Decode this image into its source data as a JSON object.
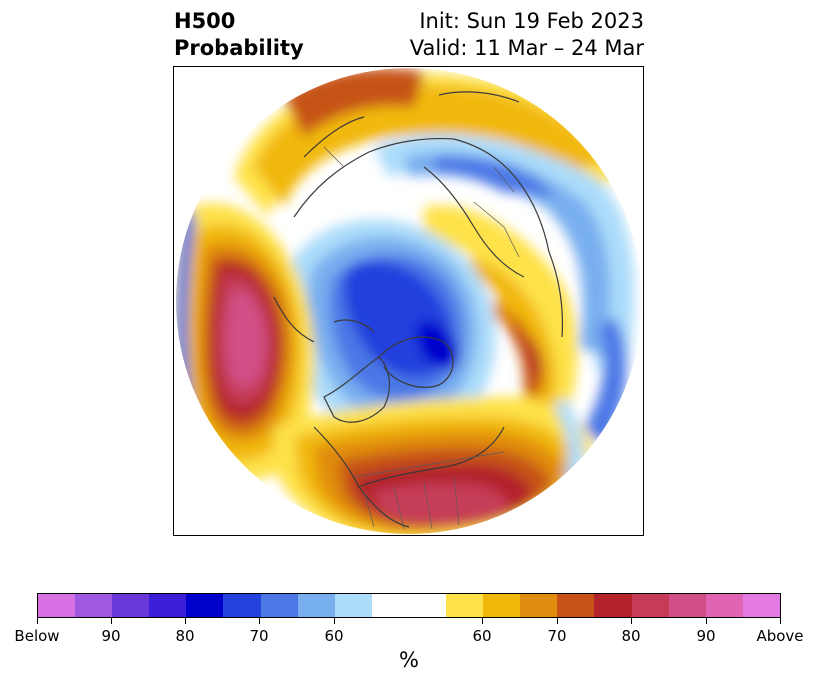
{
  "title": {
    "left_line1": "H500",
    "left_line2": "Probability",
    "right_line1": "Init: Sun 19 Feb 2023",
    "right_line2": "Valid: 11 Mar – 24 Mar"
  },
  "map": {
    "projection": "north-polar-stereographic",
    "description_icons": [
      "coastlines",
      "country-borders",
      "us-state-borders"
    ]
  },
  "colorbar": {
    "label": "%",
    "below_colors": [
      "#d670e3",
      "#9e59e0",
      "#6a38d9",
      "#3a1fd6",
      "#0000cd",
      "#2341dd",
      "#4c78e6",
      "#78afef",
      "#acdcfa"
    ],
    "neutral_color": "#ffffff",
    "above_colors": [
      "#fee249",
      "#f1b80b",
      "#e08c0f",
      "#c65218",
      "#b3232a",
      "#c63c58",
      "#d14f87",
      "#e164b4",
      "#e47be2"
    ],
    "tick_labels": [
      "Below",
      "90",
      "80",
      "70",
      "60",
      "60",
      "70",
      "80",
      "90",
      "Above"
    ]
  }
}
